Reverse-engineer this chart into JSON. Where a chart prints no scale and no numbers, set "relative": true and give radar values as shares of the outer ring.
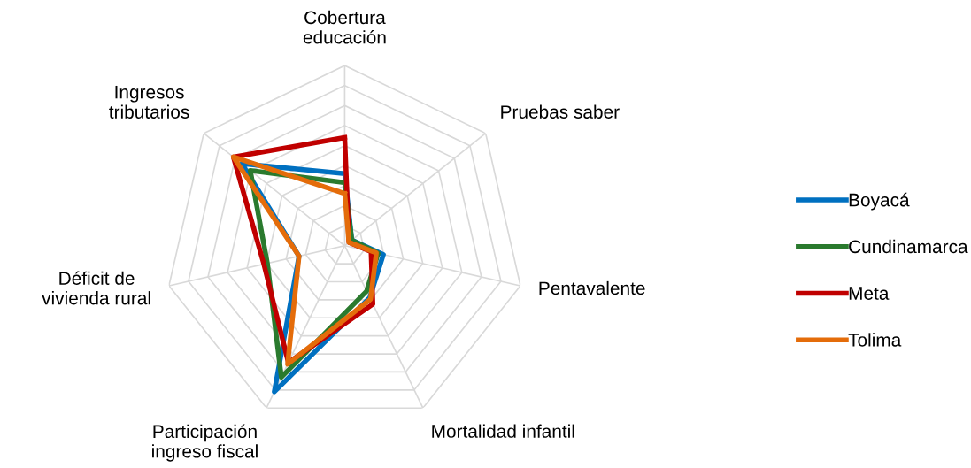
{
  "chart_data": {
    "type": "radar",
    "relative": true,
    "grid": true,
    "legend": "right",
    "marker": "none",
    "line_style": "solid",
    "categories": [
      "Cobertura\neducación",
      "Pruebas saber",
      "Pentavalente",
      "Mortalidad infantil",
      "Participación\ningreso fiscal",
      "Déficit de\nvivienda rural",
      "Ingresos\ntributarios"
    ],
    "series": [
      {
        "name": "Boyacá",
        "color": "#0070c0",
        "values": [
          0.4,
          0.05,
          0.22,
          0.32,
          0.9,
          0.26,
          0.73
        ]
      },
      {
        "name": "Cundinamarca",
        "color": "#2a7a2e",
        "values": [
          0.35,
          0.05,
          0.19,
          0.28,
          0.81,
          0.44,
          0.67
        ]
      },
      {
        "name": "Meta",
        "color": "#c00000",
        "values": [
          0.6,
          0.03,
          0.15,
          0.36,
          0.72,
          0.46,
          0.79
        ]
      },
      {
        "name": "Tolima",
        "color": "#e46c0a",
        "values": [
          0.29,
          0.03,
          0.18,
          0.33,
          0.73,
          0.26,
          0.79
        ]
      }
    ]
  }
}
